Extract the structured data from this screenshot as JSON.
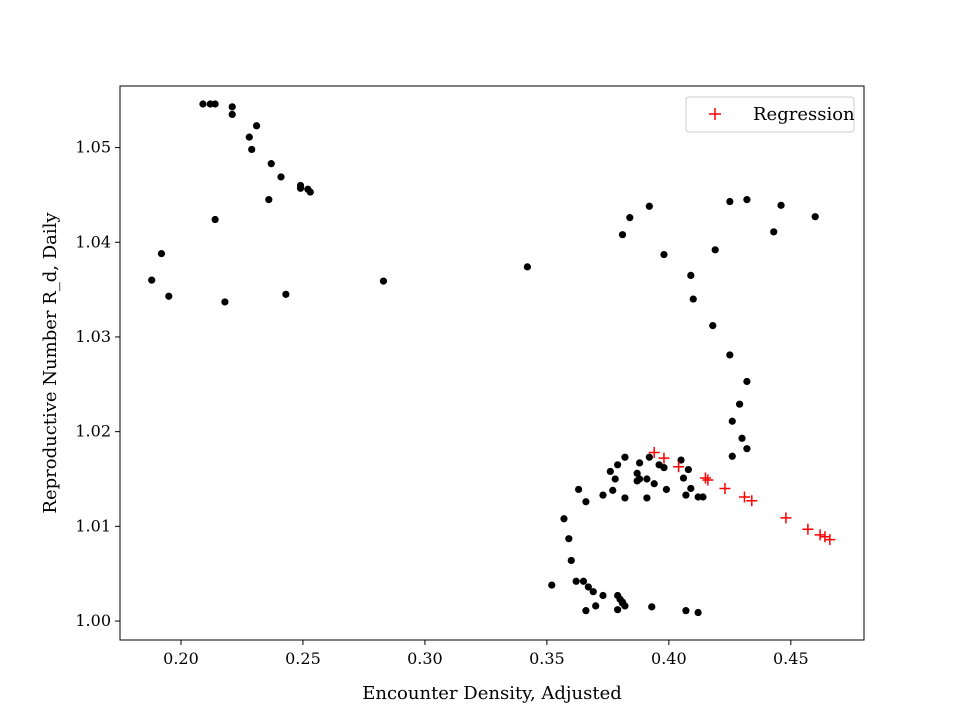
{
  "chart_data": {
    "type": "scatter",
    "xlabel": "Encounter Density, Adjusted",
    "ylabel": "Reproductive Number R_d, Daily",
    "xlim": [
      0.175,
      0.48
    ],
    "ylim": [
      0.998,
      1.0565
    ],
    "x_ticks": [
      0.2,
      0.25,
      0.3,
      0.35,
      0.4,
      0.45
    ],
    "x_tick_labels": [
      "0.20",
      "0.25",
      "0.30",
      "0.35",
      "0.40",
      "0.45"
    ],
    "y_ticks": [
      1.0,
      1.01,
      1.02,
      1.03,
      1.04,
      1.05
    ],
    "y_tick_labels": [
      "1.00",
      "1.01",
      "1.02",
      "1.03",
      "1.04",
      "1.05"
    ],
    "grid": false,
    "legend": {
      "position": "top-right",
      "entries": [
        "Regression"
      ]
    },
    "colors": {
      "points": "#000000",
      "regression": "#ff0000",
      "axes": "#000000"
    },
    "series": [
      {
        "marker": "dot",
        "x": [
          0.209,
          0.212,
          0.214,
          0.221,
          0.221,
          0.228,
          0.229,
          0.231,
          0.237,
          0.241,
          0.249,
          0.249,
          0.252,
          0.253,
          0.236,
          0.214,
          0.192,
          0.188,
          0.195,
          0.218,
          0.243,
          0.283,
          0.342,
          0.392,
          0.384,
          0.381,
          0.398,
          0.409,
          0.41,
          0.419,
          0.425,
          0.432,
          0.446,
          0.46,
          0.443,
          0.418,
          0.425,
          0.432,
          0.429,
          0.426,
          0.43,
          0.432,
          0.426,
          0.382,
          0.388,
          0.392,
          0.398,
          0.405,
          0.408,
          0.379,
          0.376,
          0.378,
          0.387,
          0.388,
          0.391,
          0.394,
          0.387,
          0.396,
          0.399,
          0.406,
          0.409,
          0.412,
          0.414,
          0.377,
          0.382,
          0.391,
          0.407,
          0.363,
          0.373,
          0.366,
          0.357,
          0.359,
          0.36,
          0.352,
          0.362,
          0.365,
          0.367,
          0.369,
          0.373,
          0.379,
          0.38,
          0.381,
          0.382,
          0.381,
          0.379,
          0.37,
          0.366,
          0.393,
          0.407,
          0.412
        ],
        "y": [
          1.0546,
          1.0546,
          1.0546,
          1.0543,
          1.0535,
          1.0511,
          1.0498,
          1.0523,
          1.0483,
          1.0469,
          1.046,
          1.0457,
          1.0456,
          1.0453,
          1.0445,
          1.0424,
          1.0388,
          1.036,
          1.0343,
          1.0337,
          1.0345,
          1.0359,
          1.0374,
          1.0438,
          1.0426,
          1.0408,
          1.0387,
          1.0365,
          1.034,
          1.0392,
          1.0443,
          1.0445,
          1.0439,
          1.0427,
          1.0411,
          1.0312,
          1.0281,
          1.0253,
          1.0229,
          1.0211,
          1.0193,
          1.0182,
          1.0174,
          1.0173,
          1.0167,
          1.0173,
          1.0162,
          1.017,
          1.016,
          1.0165,
          1.0158,
          1.015,
          1.0156,
          1.015,
          1.015,
          1.0145,
          1.0148,
          1.0165,
          1.0139,
          1.0151,
          1.014,
          1.0131,
          1.0131,
          1.0138,
          1.013,
          1.013,
          1.0133,
          1.0139,
          1.0133,
          1.0126,
          1.0108,
          1.0087,
          1.0064,
          1.0038,
          1.0042,
          1.0042,
          1.0036,
          1.0031,
          1.0027,
          1.0027,
          1.0023,
          1.0019,
          1.0016,
          1.002,
          1.0012,
          1.0016,
          1.0011,
          1.0015,
          1.0011,
          1.0009
        ]
      },
      {
        "name": "Regression",
        "marker": "plus",
        "x": [
          0.394,
          0.398,
          0.404,
          0.415,
          0.416,
          0.423,
          0.431,
          0.434,
          0.448,
          0.457,
          0.462,
          0.464,
          0.466
        ],
        "y": [
          1.0178,
          1.0172,
          1.0163,
          1.0151,
          1.0149,
          1.014,
          1.0131,
          1.0127,
          1.0109,
          1.0097,
          1.0091,
          1.0089,
          1.0086
        ]
      }
    ]
  }
}
